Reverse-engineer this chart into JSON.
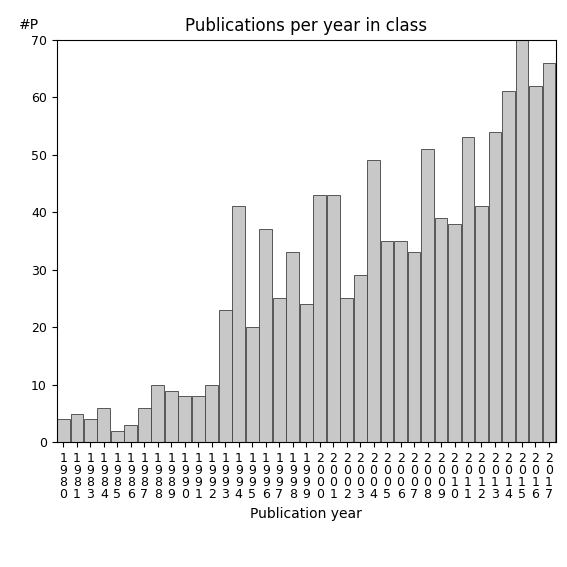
{
  "title": "Publications per year in class",
  "xlabel": "Publication year",
  "ylabel": "#P",
  "bar_color": "#c8c8c8",
  "bar_edge_color": "#404040",
  "years": [
    1980,
    1981,
    1983,
    1984,
    1985,
    1986,
    1987,
    1988,
    1989,
    1990,
    1991,
    1992,
    1993,
    1994,
    1995,
    1996,
    1997,
    1998,
    1999,
    2000,
    2001,
    2002,
    2003,
    2004,
    2005,
    2006,
    2007,
    2008,
    2009,
    2010,
    2011,
    2012,
    2013,
    2014,
    2015,
    2016,
    2017
  ],
  "values": [
    4,
    5,
    4,
    6,
    2,
    3,
    6,
    10,
    9,
    8,
    8,
    10,
    23,
    41,
    20,
    37,
    25,
    33,
    24,
    43,
    43,
    25,
    29,
    49,
    35,
    35,
    33,
    51,
    39,
    38,
    53,
    41,
    54,
    61,
    70,
    62,
    66
  ],
  "ylim": [
    0,
    70
  ],
  "yticks": [
    0,
    10,
    20,
    30,
    40,
    50,
    60,
    70
  ],
  "bg_color": "#ffffff",
  "title_fontsize": 12,
  "label_fontsize": 10,
  "tick_fontsize": 9,
  "figsize": [
    5.67,
    5.67
  ],
  "dpi": 100
}
